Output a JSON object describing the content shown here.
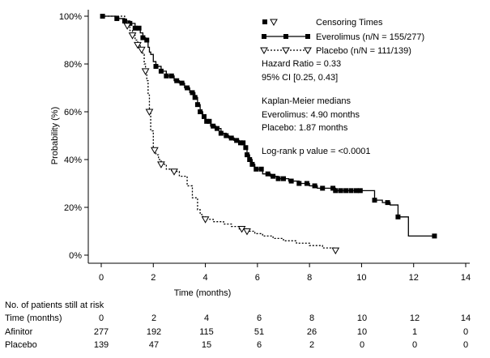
{
  "chart_data": {
    "type": "line",
    "xlabel": "Time (months)",
    "ylabel": "Probability (%)",
    "xlim": [
      0,
      14
    ],
    "ylim": [
      0,
      100
    ],
    "xticks": [
      0,
      2,
      4,
      6,
      8,
      10,
      12,
      14
    ],
    "yticks": [
      0,
      20,
      40,
      60,
      80,
      100
    ],
    "ytick_labels": [
      "0%",
      "20%",
      "40%",
      "60%",
      "80%",
      "100%"
    ],
    "grid": false,
    "legend": {
      "position": "top-right",
      "censor_label": "Censoring Times",
      "entries": [
        "Everolimus (n/N = 155/277)",
        "Placebo (n/N = 111/139)"
      ]
    },
    "annotations": [
      "Hazard Ratio = 0.33",
      "95% CI [0.25, 0.43]",
      "Kaplan-Meier medians",
      "Everolimus: 4.90 months",
      "Placebo: 1.87 months",
      "Log-rank p value = <0.0001"
    ],
    "series": [
      {
        "name": "Everolimus (n/N = 155/277)",
        "style": "solid",
        "marker": "square",
        "color": "#000000",
        "x": [
          0,
          0.6,
          0.9,
          1.1,
          1.3,
          1.5,
          1.6,
          1.7,
          1.8,
          1.85,
          1.9,
          2.0,
          2.1,
          2.3,
          2.5,
          2.8,
          3.0,
          3.2,
          3.4,
          3.6,
          3.7,
          3.8,
          3.9,
          4.0,
          4.2,
          4.4,
          4.6,
          4.8,
          4.9,
          5.1,
          5.3,
          5.5,
          5.6,
          5.7,
          5.8,
          5.9,
          6.2,
          6.5,
          6.8,
          7.2,
          7.6,
          8.0,
          8.3,
          8.7,
          9.0,
          9.3,
          10.2,
          10.5,
          10.8,
          11.1,
          11.4,
          11.8,
          12.8
        ],
        "y": [
          100,
          99,
          98,
          97,
          95,
          93,
          91,
          90,
          87,
          85,
          84,
          81,
          79,
          77,
          75,
          73,
          72,
          70,
          68,
          66,
          63,
          60,
          58,
          56,
          54,
          53,
          51,
          50,
          49,
          48,
          47,
          45,
          42,
          40,
          38,
          36,
          34,
          33,
          32,
          31,
          30,
          29,
          28,
          28,
          27,
          27,
          27,
          23,
          22,
          21,
          16,
          8,
          8
        ],
        "censored_x": [
          0.05,
          0.6,
          0.9,
          1.1,
          1.3,
          1.45,
          1.6,
          1.75,
          2.1,
          2.3,
          2.5,
          2.7,
          2.9,
          3.1,
          3.3,
          3.5,
          3.6,
          3.7,
          3.8,
          3.95,
          4.05,
          4.15,
          4.3,
          4.45,
          4.6,
          4.8,
          5.0,
          5.2,
          5.35,
          5.45,
          5.55,
          5.6,
          5.7,
          5.8,
          5.95,
          6.15,
          6.4,
          6.6,
          6.8,
          7.0,
          7.3,
          7.6,
          7.9,
          8.2,
          8.5,
          8.9,
          9.0,
          9.2,
          9.4,
          9.6,
          9.8,
          9.95,
          10.5,
          11.0,
          11.4,
          12.8
        ]
      },
      {
        "name": "Placebo (n/N = 111/139)",
        "style": "dotted",
        "marker": "triangle-down",
        "color": "#000000",
        "x": [
          0,
          0.9,
          1.0,
          1.1,
          1.2,
          1.3,
          1.4,
          1.5,
          1.6,
          1.65,
          1.7,
          1.75,
          1.8,
          1.85,
          1.9,
          2.0,
          2.1,
          2.2,
          2.3,
          2.5,
          2.7,
          3.0,
          3.3,
          3.5,
          3.7,
          3.8,
          3.9,
          4.0,
          4.3,
          4.7,
          5.0,
          5.3,
          5.6,
          5.9,
          6.2,
          6.6,
          7.0,
          7.5,
          8.0,
          8.5,
          9.0
        ],
        "y": [
          100,
          98,
          96,
          94,
          92,
          90,
          88,
          86,
          84,
          80,
          77,
          73,
          67,
          60,
          52,
          44,
          42,
          40,
          38,
          36,
          35,
          33,
          29,
          24,
          19,
          17,
          16,
          15,
          14,
          13,
          12,
          11,
          10,
          9,
          8,
          7,
          6,
          5,
          4,
          3,
          2
        ],
        "censored_x": [
          1.0,
          1.2,
          1.4,
          1.55,
          1.7,
          1.85,
          2.05,
          2.3,
          2.8,
          4.0,
          5.4,
          5.6,
          9.0
        ]
      }
    ]
  },
  "risk_table": {
    "title": "No. of patients still at risk",
    "rows": [
      {
        "label": "Time (months)",
        "values": [
          "0",
          "2",
          "4",
          "6",
          "8",
          "10",
          "12",
          "14"
        ]
      },
      {
        "label": "Afinitor",
        "values": [
          "277",
          "192",
          "115",
          "51",
          "26",
          "10",
          "1",
          "0"
        ]
      },
      {
        "label": "Placebo",
        "values": [
          "139",
          "47",
          "15",
          "6",
          "2",
          "0",
          "0",
          "0"
        ]
      }
    ]
  }
}
